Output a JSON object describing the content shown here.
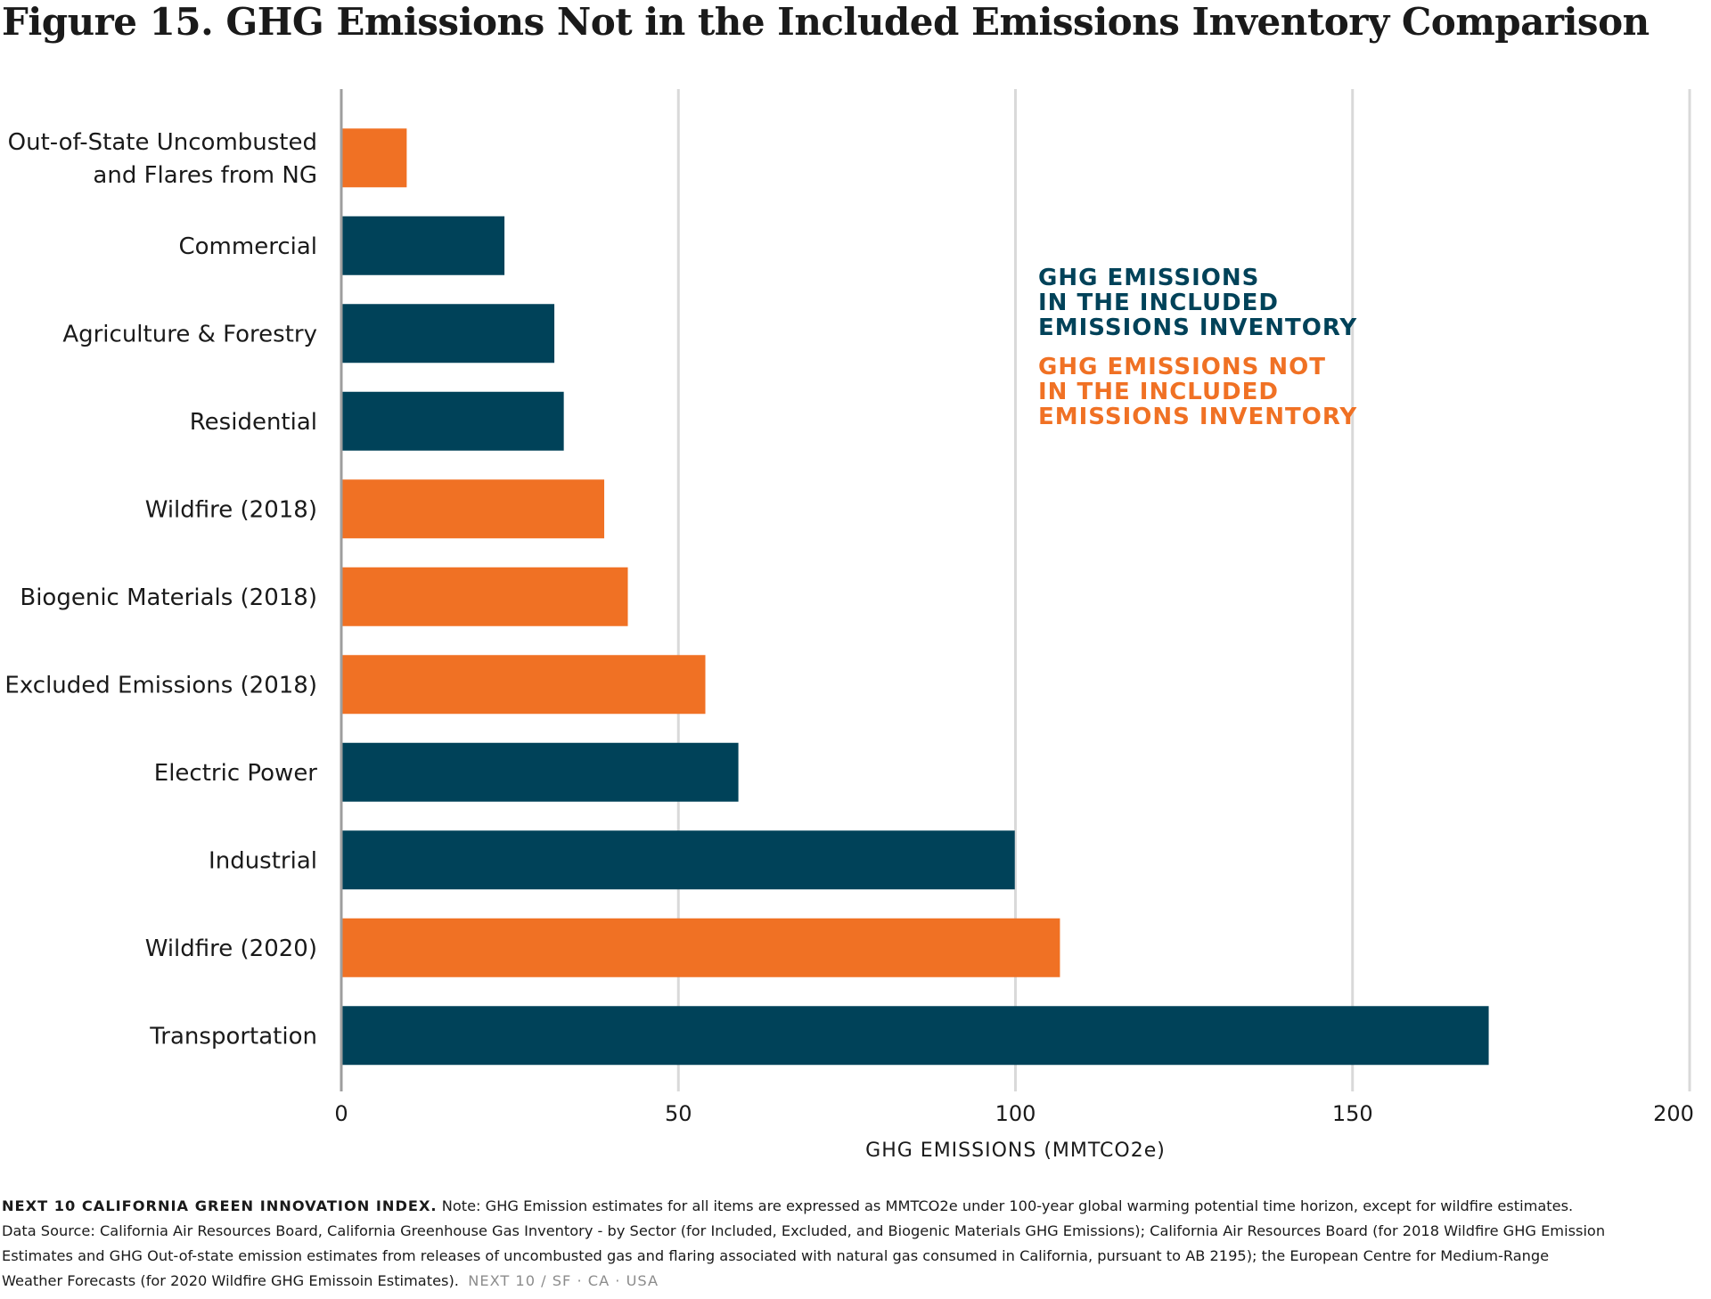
{
  "title": "Figure 15. GHG Emissions Not in the Included Emissions Inventory Comparison",
  "chart_data": {
    "type": "bar",
    "orientation": "horizontal",
    "categories": [
      "Out-of-State Uncombusted and Flares from NG",
      "Commercial",
      "Agriculture & Forestry",
      "Residential",
      "Wildfire (2018)",
      "Biogenic Materials (2018)",
      "Excluded Emissions (2018)",
      "Electric Power",
      "Industrial",
      "Wildfire (2020)",
      "Transportation"
    ],
    "category_lines": [
      [
        "Out-of-State Uncombusted",
        "and Flares from NG"
      ],
      [
        "Commercial"
      ],
      [
        "Agriculture & Forestry"
      ],
      [
        "Residential"
      ],
      [
        "Wildfire (2018)"
      ],
      [
        "Biogenic Materials (2018)"
      ],
      [
        "Excluded Emissions (2018)"
      ],
      [
        "Electric Power"
      ],
      [
        "Industrial"
      ],
      [
        "Wildfire (2020)"
      ],
      [
        "Transportation"
      ]
    ],
    "values": [
      9.7,
      24.2,
      31.6,
      33.0,
      39.0,
      42.5,
      54.0,
      58.9,
      99.9,
      106.6,
      170.2
    ],
    "groups": [
      "not_included",
      "included",
      "included",
      "included",
      "not_included",
      "not_included",
      "not_included",
      "included",
      "included",
      "not_included",
      "included"
    ],
    "group_colors": {
      "included": "#004259",
      "not_included": "#f07124"
    },
    "xlabel": "GHG EMISSIONS (MMTCO2e)",
    "xlim": [
      0,
      200
    ],
    "xticks": [
      0,
      50,
      100,
      150,
      200
    ],
    "grid": "vertical",
    "legend": {
      "placement": "right-middle",
      "included": [
        "GHG EMISSIONS",
        "IN THE INCLUDED",
        "EMISSIONS INVENTORY"
      ],
      "not_included": [
        "GHG EMISSIONS NOT",
        "IN THE INCLUDED",
        "EMISSIONS INVENTORY"
      ]
    }
  },
  "footnote": {
    "source_label": "NEXT 10 CALIFORNIA GREEN INNOVATION INDEX.",
    "line1": " Note: GHG Emission estimates for all items are expressed as MMTCO2e under 100-year global warming potential time horizon, except for wildfire estimates.",
    "line2": "Data Source: California Air Resources Board, California Greenhouse Gas Inventory - by Sector (for Included, Excluded, and Biogenic Materials GHG Emissions); California Air Resources Board (for 2018 Wildfire GHG Emission",
    "line3": "Estimates and GHG Out-of-state emission estimates from releases of uncombusted gas and flaring associated with natural gas consumed in California, pursuant to AB 2195); the European Centre for Medium-Range",
    "line4": "Weather Forecasts (for 2020 Wildfire GHG Emissoin Estimates).",
    "brand": "NEXT 10 / SF · CA · USA"
  }
}
